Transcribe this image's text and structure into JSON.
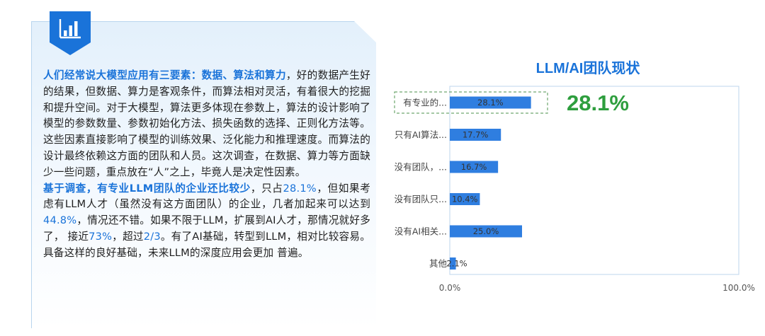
{
  "panel": {
    "icon": "bar-chart-icon",
    "paragraph1": {
      "lead": "人们经常说大模型应用有三要素：数据、算法和算力",
      "body": "，好的数据产生好的结果，但数据、算力是客观条件，而算法相对灵活，有着很大的挖掘和提升空间。对于大模型，算法更多体现在参数上，算法的设计影响了模型的参数数量、参数初始化方法、损失函数的选择、正则化方法等。这些因素直接影响了模型的训练效果、泛化能力和推理速度。而算法的设计最终依赖这方面的团队和人员。这次调查，在数据、算力等方面缺少一些问题，重点放在“人”之上，毕竟人是决定性因素。"
    },
    "paragraph2": {
      "lead": "基于调查，有专业LLM团队的企业还比较少",
      "t1": "，只占",
      "n1": "28.1%",
      "t2": "，但如果考虑有LLM人才（虽然没有这方面团队）的企业，几者加起来可以达到",
      "n2": "44.8%",
      "t3": "，情况还不错。如果不限于LLM，扩展到AI人才，那情况就好多了，  接近",
      "n3": "73%",
      "t4": "，超过",
      "n4": "2/3",
      "t5": "。有了AI基础，转型到LLM，相对比较容易。具备这样的良好基础，未来LLM的深度应用会更加 普遍。"
    }
  },
  "chart_data": {
    "type": "bar",
    "orientation": "horizontal",
    "title": "LLM/AI团队现状",
    "highlight_value": "28.1%",
    "categories": [
      "有专业的...",
      "只有AI算法...",
      "没有团队，...",
      "没有团队只...",
      "没有AI相关...",
      "其他"
    ],
    "values": [
      28.1,
      17.7,
      16.7,
      10.4,
      25.0,
      2.1
    ],
    "value_labels": [
      "28.1%",
      "17.7%",
      "16.7%",
      "10.4%",
      "25.0%",
      "2.1%"
    ],
    "xlim": [
      0,
      100
    ],
    "tick_labels": [
      "0.0%",
      "100.0%"
    ],
    "colors": {
      "bar": "#2f7ee0",
      "highlight_box": "#6fa86f",
      "title": "#1a73d9",
      "highlight_text": "#2e9e3e"
    }
  }
}
